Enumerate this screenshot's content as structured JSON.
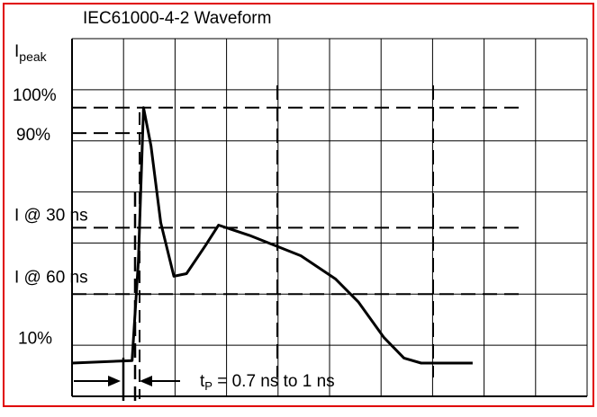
{
  "chart_data": {
    "type": "line",
    "title": "IEC61000-4-2 Waveform",
    "ylabel": {
      "main": "I",
      "sub": "peak"
    },
    "y_ticks": [
      {
        "label": "100%",
        "value": 100
      },
      {
        "label": "90%",
        "value": 90
      },
      {
        "label": "I @ 30 ns",
        "value": 53
      },
      {
        "label": "I @ 60 ns",
        "value": 27
      },
      {
        "label": "10%",
        "value": 10
      }
    ],
    "grid": true,
    "xlim": [
      0,
      90
    ],
    "ylim": [
      -13,
      127
    ],
    "series": [
      {
        "x": [
          0,
          10.5,
          11.6,
          12.5,
          13.8,
          15.5,
          17.8,
          20,
          23.3,
          25.6,
          31,
          40,
          46,
          50,
          54.5,
          58,
          61,
          66.5,
          70
        ],
        "y": [
          0,
          1,
          40,
          100,
          85,
          55,
          34,
          35,
          46,
          54,
          50,
          42,
          33,
          24,
          10,
          2,
          0,
          0,
          0
        ]
      }
    ],
    "reference_lines": [
      {
        "value": 100
      },
      {
        "value": 90
      },
      {
        "value": 53
      },
      {
        "value": 27
      }
    ],
    "time_markers": [
      30,
      60
    ],
    "annotation": {
      "prefix": "t",
      "sub": "P",
      "text": " = 0.7 ns to 1 ns"
    }
  }
}
